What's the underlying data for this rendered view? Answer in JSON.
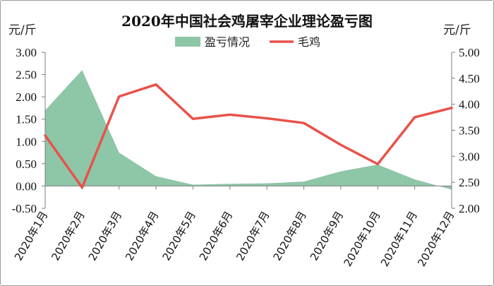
{
  "chart_data": {
    "type": "area+line",
    "title": "2020年中国社会鸡屠宰企业理论盈亏图",
    "left_unit": "元/斤",
    "right_unit": "元/斤",
    "categories": [
      "2020年1月",
      "2020年2月",
      "2020年3月",
      "2020年4月",
      "2020年5月",
      "2020年6月",
      "2020年7月",
      "2020年8月",
      "2020年9月",
      "2020年10月",
      "2020年11月",
      "2020年12月"
    ],
    "series": [
      {
        "name": "盈亏情况",
        "type": "area",
        "axis": "left",
        "color": "#8ec6a8",
        "values": [
          1.7,
          2.6,
          0.75,
          0.22,
          0.03,
          0.05,
          0.06,
          0.1,
          0.33,
          0.48,
          0.15,
          -0.08
        ]
      },
      {
        "name": "毛鸡",
        "type": "line",
        "axis": "right",
        "color": "#e8524a",
        "values": [
          3.4,
          2.4,
          4.15,
          4.38,
          3.72,
          3.8,
          3.73,
          3.64,
          3.22,
          2.85,
          3.75,
          3.93
        ]
      }
    ],
    "left_axis": {
      "min": -0.5,
      "max": 3.0,
      "step": 0.5,
      "tick_labels": [
        "-0.50",
        "0.00",
        "0.50",
        "1.00",
        "1.50",
        "2.00",
        "2.50",
        "3.00"
      ]
    },
    "right_axis": {
      "min": 2.0,
      "max": 5.0,
      "step": 0.5,
      "tick_labels": [
        "2.00",
        "2.50",
        "3.00",
        "3.50",
        "4.00",
        "4.50",
        "5.00"
      ]
    },
    "legend_position": "top-center",
    "grid": false
  }
}
